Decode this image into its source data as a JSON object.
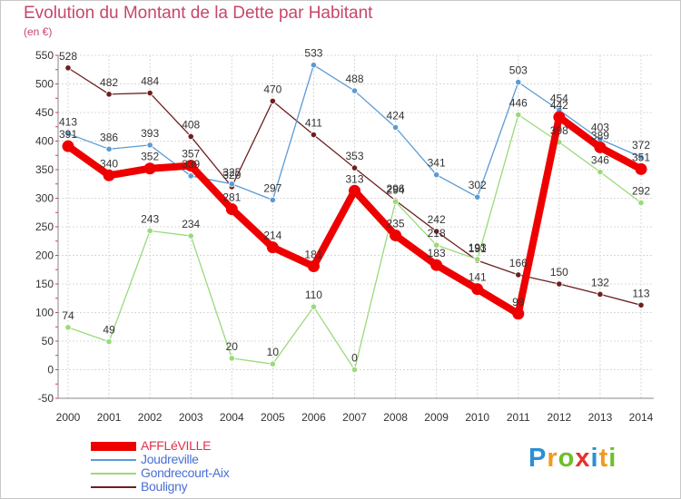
{
  "header": {
    "title": "Evolution du Montant de la Dette par Habitant",
    "subtitle": "(en €)"
  },
  "logo": {
    "text": "Proxiti",
    "colors": [
      "#2a8fd6",
      "#f29a1f",
      "#6cbf2a",
      "#e5322d",
      "#2a8fd6",
      "#f29a1f",
      "#6cbf2a"
    ]
  },
  "chart_data": {
    "type": "line",
    "categories": [
      "2000",
      "2001",
      "2002",
      "2003",
      "2004",
      "2005",
      "2006",
      "2007",
      "2008",
      "2009",
      "2010",
      "2011",
      "2012",
      "2013",
      "2014"
    ],
    "ylim": [
      -50,
      550
    ],
    "yticks": [
      -50,
      0,
      50,
      100,
      150,
      200,
      250,
      300,
      350,
      400,
      450,
      500,
      550
    ],
    "grid": true,
    "legend_position": "bottom",
    "series": [
      {
        "name": "Bouligny",
        "color": "#6e1f1f",
        "values": [
          528,
          482,
          484,
          408,
          320,
          470,
          411,
          353,
          296,
          242,
          191,
          166,
          150,
          132,
          113
        ],
        "labels": [
          "528",
          "482",
          "484",
          "408",
          "320",
          "470",
          "411",
          "353",
          "296",
          "242",
          "191",
          "166",
          "150",
          "132",
          "113"
        ]
      },
      {
        "name": "Gondrecourt-Aix",
        "color": "#9ada7a",
        "values": [
          74,
          49,
          243,
          234,
          20,
          10,
          110,
          0,
          294,
          218,
          193,
          446,
          398,
          346,
          292
        ],
        "labels": [
          "74",
          "49",
          "243",
          "234",
          "20",
          "10",
          "110",
          "0",
          "294",
          "218",
          "193",
          "446",
          "398",
          "346",
          "292"
        ]
      },
      {
        "name": "Joudreville",
        "color": "#5b9bd5",
        "values": [
          413,
          386,
          393,
          339,
          325,
          297,
          533,
          488,
          424,
          341,
          302,
          503,
          454,
          403,
          372
        ],
        "labels": [
          "413",
          "386",
          "393",
          "339",
          "325",
          "297",
          "533",
          "488",
          "424",
          "341",
          "302",
          "503",
          "454",
          "403",
          "372"
        ]
      },
      {
        "name": "AFFLéVILLE",
        "color": "#ee0000",
        "values": [
          391,
          340,
          352,
          357,
          281,
          214,
          181,
          313,
          235,
          183,
          141,
          98,
          442,
          389,
          351
        ],
        "labels": [
          "391",
          "340",
          "352",
          "357",
          "281",
          "214",
          "181",
          "313",
          "235",
          "183",
          "141",
          "98",
          "442",
          "389",
          "351"
        ]
      }
    ]
  },
  "legend": [
    {
      "name": "AFFLéVILLE",
      "color": "#ee0000",
      "text_color": "#e0304a",
      "thickness": 10
    },
    {
      "name": "Joudreville",
      "color": "#5b9bd5",
      "text_color": "#4a6fd6",
      "thickness": 2
    },
    {
      "name": "Gondrecourt-Aix",
      "color": "#9ada7a",
      "text_color": "#4a6fd6",
      "thickness": 2
    },
    {
      "name": "Bouligny",
      "color": "#6e1f1f",
      "text_color": "#4a6fd6",
      "thickness": 2
    }
  ]
}
